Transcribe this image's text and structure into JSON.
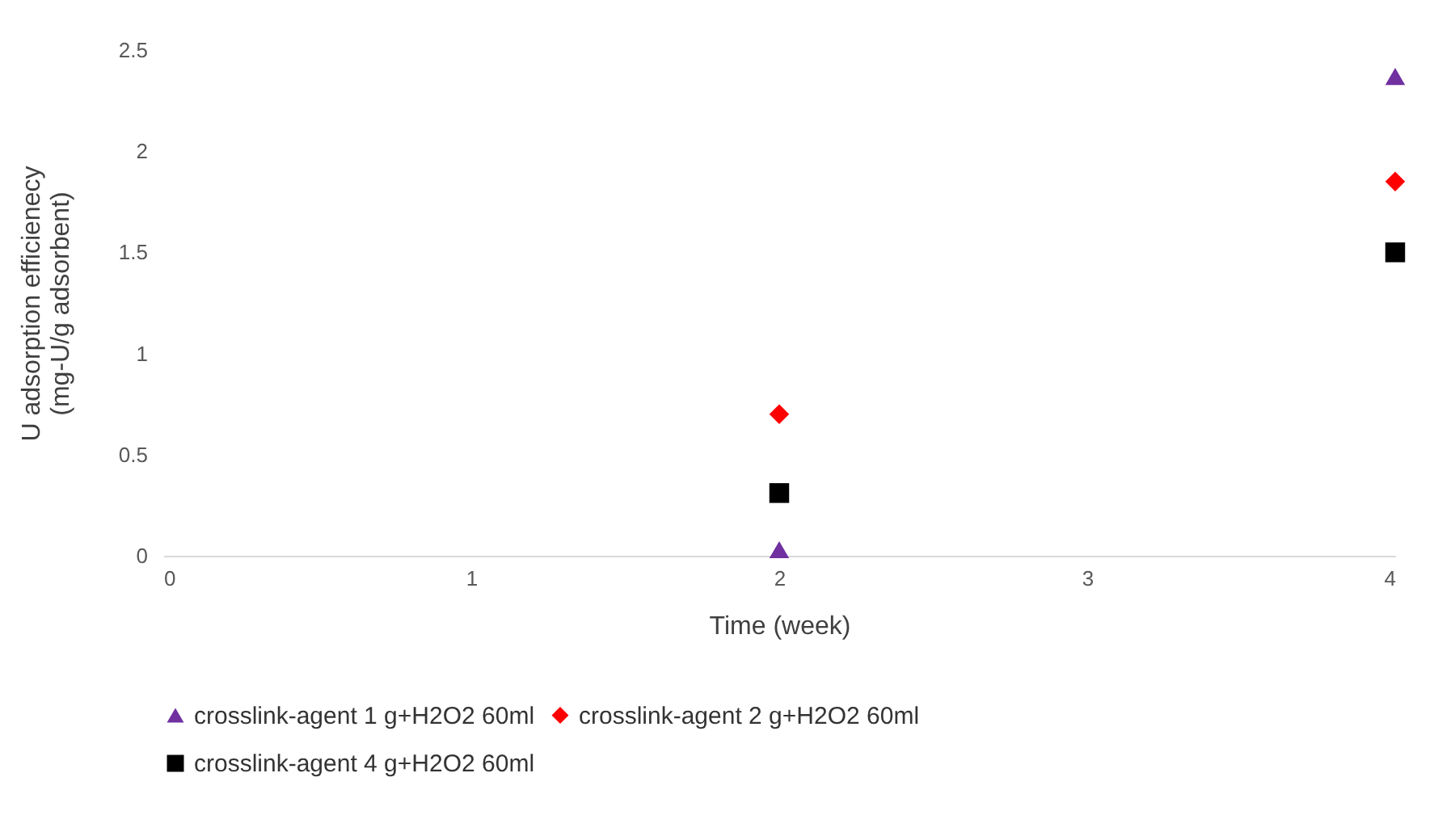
{
  "chart_data": {
    "type": "scatter",
    "xlabel": "Time (week)",
    "ylabel": "U adsorption efficienecy\n(mg-U/g adsorbent)",
    "x": [
      2,
      4
    ],
    "series": [
      {
        "name": "crosslink-agent 1 g+H2O2 60ml",
        "color": "#7030a0",
        "marker": "triangle",
        "values": [
          0.03,
          2.37
        ]
      },
      {
        "name": "crosslink-agent 2 g+H2O2 60ml",
        "color": "#ff0000",
        "marker": "diamond",
        "values": [
          0.7,
          1.85
        ]
      },
      {
        "name": "crosslink-agent 4 g+H2O2 60ml",
        "color": "#000000",
        "marker": "square",
        "values": [
          0.31,
          1.5
        ]
      }
    ],
    "xlim": [
      0,
      4
    ],
    "xticks": [
      0,
      1,
      2,
      3,
      4
    ],
    "ylim": [
      0,
      2.5
    ],
    "yticks": [
      0,
      0.5,
      1,
      1.5,
      2,
      2.5
    ],
    "grid": false,
    "legend": "bottom"
  }
}
